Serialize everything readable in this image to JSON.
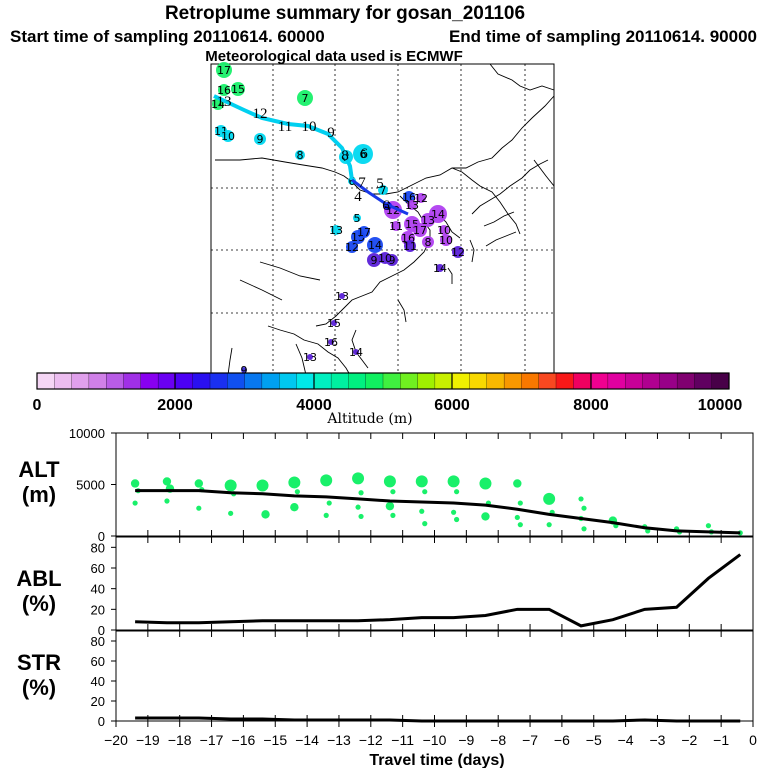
{
  "header": {
    "title": "Retroplume summary for gosan_201106",
    "start_label": "Start time of sampling 20110614. 60000",
    "end_label": "End time of sampling 20110614. 90000",
    "met_label": "Meteorological data used is ECMWF"
  },
  "colorbar": {
    "ticks": [
      "0",
      "2000",
      "4000",
      "6000",
      "8000",
      "10000"
    ],
    "label": "Altitude (m)",
    "colors": [
      "#f5d6f5",
      "#ecbdf0",
      "#e0a0ec",
      "#d080e8",
      "#b85ce6",
      "#a030e6",
      "#8800f0",
      "#6a00f2",
      "#4c00f4",
      "#2a10f0",
      "#1a30f0",
      "#1050f0",
      "#0878f0",
      "#00a0f0",
      "#00c8f0",
      "#00e8e8",
      "#00f0c0",
      "#00f0a0",
      "#00f080",
      "#10f060",
      "#40f040",
      "#70f020",
      "#a0f000",
      "#c8f000",
      "#f0f000",
      "#f8d800",
      "#f8b800",
      "#f89800",
      "#f87800",
      "#f84820",
      "#f81818",
      "#f00060",
      "#f00090",
      "#e000a0",
      "#c80098",
      "#b00090",
      "#980088",
      "#800070",
      "#600060",
      "#480048"
    ]
  },
  "trajectory_map": {
    "track_labels": [
      "13",
      "12",
      "11",
      "10",
      "9",
      "8",
      "6",
      "7",
      "6",
      "5",
      "4"
    ],
    "markers": [
      {
        "label": "17",
        "color": "#19f06a"
      },
      {
        "label": "15",
        "color": "#19f06a"
      },
      {
        "label": "16",
        "color": "#19f06a"
      },
      {
        "label": "14",
        "color": "#19f06a"
      },
      {
        "label": "7",
        "color": "#19f06a"
      },
      {
        "label": "11",
        "color": "#00d8f0"
      },
      {
        "label": "10",
        "color": "#00d8f0"
      },
      {
        "label": "9",
        "color": "#00d8f0"
      },
      {
        "label": "8",
        "color": "#00d8f0"
      },
      {
        "label": "8",
        "color": "#00d8f0"
      },
      {
        "label": "6",
        "color": "#00d8f0"
      },
      {
        "label": "7",
        "color": "#00d8f0"
      },
      {
        "label": "6",
        "color": "#00d8f0"
      },
      {
        "label": "5",
        "color": "#00d8f0"
      },
      {
        "label": "13",
        "color": "#00d8f0"
      },
      {
        "label": "16",
        "color": "#1848f0"
      },
      {
        "label": "12",
        "color": "#1848f0"
      },
      {
        "label": "14",
        "color": "#1848f0"
      },
      {
        "label": "15",
        "color": "#1848f0"
      },
      {
        "label": "17",
        "color": "#1848f0"
      },
      {
        "label": "12",
        "color": "#b040f0"
      },
      {
        "label": "14",
        "color": "#b040f0"
      },
      {
        "label": "15",
        "color": "#b040f0"
      },
      {
        "label": "13",
        "color": "#b040f0"
      },
      {
        "label": "17",
        "color": "#b040f0"
      },
      {
        "label": "16",
        "color": "#b040f0"
      },
      {
        "label": "8",
        "color": "#b040f0"
      },
      {
        "label": "10",
        "color": "#b040f0"
      },
      {
        "label": "11",
        "color": "#b040f0"
      },
      {
        "label": "13",
        "color": "#b040f0"
      },
      {
        "label": "12",
        "color": "#b040f0"
      },
      {
        "label": "10",
        "color": "#b040f0"
      },
      {
        "label": "9",
        "color": "#5a20d8"
      },
      {
        "label": "9",
        "color": "#5a20d8"
      },
      {
        "label": "10",
        "color": "#5a20d8"
      },
      {
        "label": "11",
        "color": "#5a20d8"
      },
      {
        "label": "12",
        "color": "#5a20d8"
      },
      {
        "label": "14",
        "color": "#5a20d8"
      },
      {
        "label": "13",
        "color": "#5a20d8"
      },
      {
        "label": "15",
        "color": "#5a20d8"
      },
      {
        "label": "16",
        "color": "#5a20d8"
      },
      {
        "label": "14",
        "color": "#5a20d8"
      },
      {
        "label": "13",
        "color": "#5a20d8"
      },
      {
        "label": "9",
        "color": "#3a2cd8"
      },
      {
        "label": "4",
        "color": "#1010f0"
      }
    ]
  },
  "chart_data": [
    {
      "type": "scatter",
      "name": "ALT",
      "ylabel_lines": [
        "ALT",
        "(m)"
      ],
      "ylim": [
        0,
        10000
      ],
      "yticks": [
        "0",
        "5000",
        "10000"
      ],
      "x": [
        -19.4,
        -18.4,
        -17.4,
        -16.4,
        -15.4,
        -14.4,
        -13.4,
        -12.4,
        -11.4,
        -10.4,
        -9.4,
        -8.4,
        -7.4,
        -6.4,
        -5.4,
        -4.4,
        -3.4,
        -2.4,
        -1.4,
        -0.4
      ],
      "clusters": [
        {
          "x": -19.4,
          "values": [
            5100,
            4400,
            3200
          ],
          "sizes": [
            2,
            1,
            1
          ]
        },
        {
          "x": -18.4,
          "values": [
            5300,
            4600,
            3400
          ],
          "sizes": [
            2,
            2,
            1
          ]
        },
        {
          "x": -17.4,
          "values": [
            5100,
            4500,
            2700
          ],
          "sizes": [
            2,
            1,
            1
          ]
        },
        {
          "x": -16.4,
          "values": [
            4900,
            4100,
            2200
          ],
          "sizes": [
            3,
            1,
            1
          ]
        },
        {
          "x": -15.4,
          "values": [
            4900,
            2100
          ],
          "sizes": [
            3,
            2
          ]
        },
        {
          "x": -14.4,
          "values": [
            5200,
            4300,
            2800
          ],
          "sizes": [
            3,
            1,
            2
          ]
        },
        {
          "x": -13.4,
          "values": [
            5400,
            3200,
            2000
          ],
          "sizes": [
            3,
            1,
            1
          ]
        },
        {
          "x": -12.4,
          "values": [
            5600,
            4200,
            2800,
            1900
          ],
          "sizes": [
            3,
            1,
            1,
            1
          ]
        },
        {
          "x": -11.4,
          "values": [
            5300,
            4300,
            2900,
            2000
          ],
          "sizes": [
            3,
            1,
            2,
            1
          ]
        },
        {
          "x": -10.4,
          "values": [
            5300,
            4300,
            2400,
            1200
          ],
          "sizes": [
            3,
            1,
            1,
            1
          ]
        },
        {
          "x": -9.4,
          "values": [
            5300,
            4300,
            2300,
            1600
          ],
          "sizes": [
            3,
            1,
            1,
            1
          ]
        },
        {
          "x": -8.4,
          "values": [
            5100,
            3200,
            1900
          ],
          "sizes": [
            3,
            1,
            2
          ]
        },
        {
          "x": -7.4,
          "values": [
            5100,
            3200,
            1800,
            1100
          ],
          "sizes": [
            2,
            1,
            1,
            1
          ]
        },
        {
          "x": -6.4,
          "values": [
            3600,
            2300,
            1100
          ],
          "sizes": [
            3,
            1,
            1
          ]
        },
        {
          "x": -5.4,
          "values": [
            3600,
            2700,
            1700,
            700
          ],
          "sizes": [
            1,
            1,
            1,
            1
          ]
        },
        {
          "x": -4.4,
          "values": [
            1500,
            1000
          ],
          "sizes": [
            2,
            1
          ]
        },
        {
          "x": -3.4,
          "values": [
            900,
            500
          ],
          "sizes": [
            1,
            1
          ]
        },
        {
          "x": -2.4,
          "values": [
            700,
            400
          ],
          "sizes": [
            1,
            1
          ]
        },
        {
          "x": -1.4,
          "values": [
            1000,
            400
          ],
          "sizes": [
            1,
            1
          ]
        },
        {
          "x": -0.4,
          "values": [
            300
          ],
          "sizes": [
            1
          ]
        }
      ],
      "mean_line": {
        "x": [
          -19.4,
          -18.4,
          -17.4,
          -16.4,
          -15.4,
          -14.4,
          -13.4,
          -12.4,
          -11.4,
          -10.4,
          -9.4,
          -8.4,
          -7.4,
          -6.4,
          -5.4,
          -4.4,
          -3.4,
          -2.4,
          -1.4,
          -0.4
        ],
        "values": [
          4400,
          4400,
          4400,
          4200,
          4100,
          3900,
          3800,
          3600,
          3400,
          3300,
          3200,
          3000,
          2600,
          2100,
          1700,
          1300,
          800,
          500,
          400,
          300
        ]
      },
      "color": "#19f06a"
    },
    {
      "type": "line",
      "name": "ABL",
      "ylabel_lines": [
        "ABL",
        "(%)"
      ],
      "ylim": [
        0,
        90
      ],
      "yticks": [
        "0",
        "20",
        "40",
        "60",
        "80"
      ],
      "x": [
        -19.4,
        -18.4,
        -17.4,
        -16.4,
        -15.4,
        -14.4,
        -13.4,
        -12.4,
        -11.4,
        -10.4,
        -9.4,
        -8.4,
        -7.4,
        -6.4,
        -5.4,
        -4.4,
        -3.4,
        -2.4,
        -1.4,
        -0.4
      ],
      "values": [
        8,
        7,
        7,
        8,
        9,
        9,
        9,
        9,
        10,
        12,
        12,
        14,
        20,
        20,
        4,
        10,
        20,
        22,
        50,
        73
      ]
    },
    {
      "type": "line",
      "name": "STR",
      "ylabel_lines": [
        "STR",
        "(%)"
      ],
      "ylim": [
        0,
        90
      ],
      "yticks": [
        "0",
        "20",
        "40",
        "60",
        "80"
      ],
      "x": [
        -19.4,
        -18.4,
        -17.4,
        -16.4,
        -15.4,
        -14.4,
        -13.4,
        -12.4,
        -11.4,
        -10.4,
        -9.4,
        -8.4,
        -7.4,
        -6.4,
        -5.4,
        -4.4,
        -3.4,
        -2.4,
        -1.4,
        -0.4
      ],
      "values": [
        3,
        3,
        3,
        2,
        2,
        1,
        1,
        1,
        1,
        0,
        0,
        0,
        0,
        0,
        0,
        0,
        1,
        0,
        0,
        0
      ]
    }
  ],
  "x_axis": {
    "ticks": [
      "−20",
      "−19",
      "−18",
      "−17",
      "−16",
      "−15",
      "−14",
      "−13",
      "−12",
      "−11",
      "−10",
      "−9",
      "−8",
      "−7",
      "−6",
      "−5",
      "−4",
      "−3",
      "−2",
      "−1",
      "0"
    ],
    "label": "Travel time (days)",
    "xlim": [
      -20,
      0
    ]
  }
}
